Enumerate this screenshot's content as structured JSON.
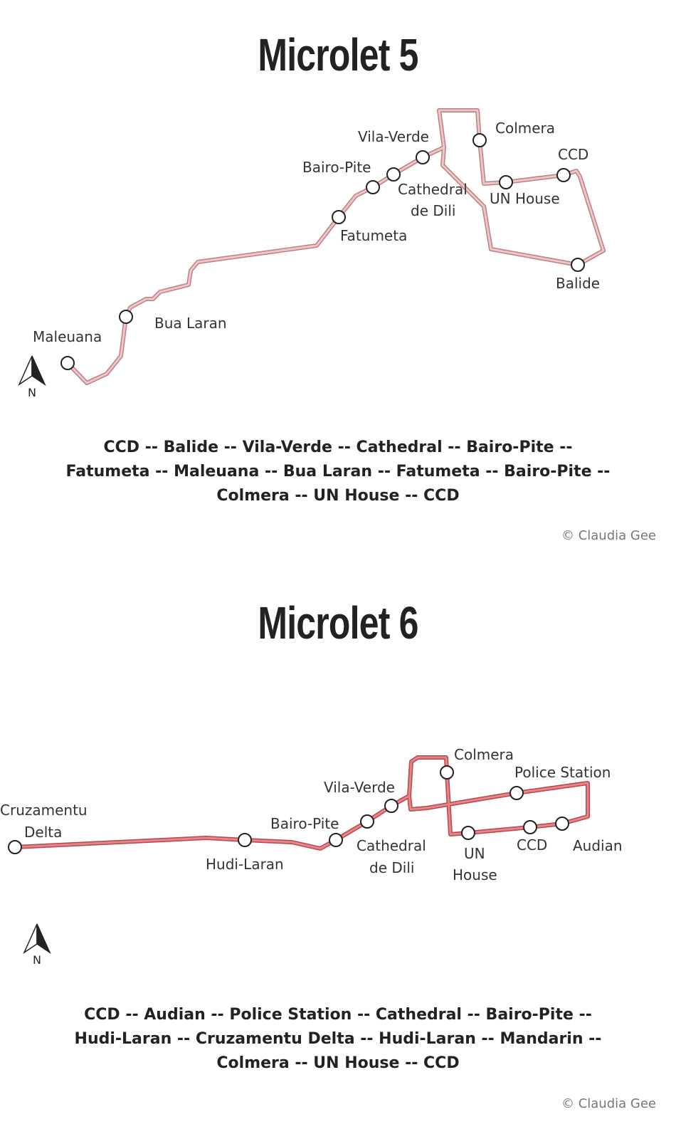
{
  "maps": [
    {
      "title": "Microlet 5",
      "route_line_color": "#e3a5a8",
      "stops": [
        {
          "name": "Maleuana"
        },
        {
          "name": "Bua Laran"
        },
        {
          "name": "Fatumeta"
        },
        {
          "name": "Bairo-Pite"
        },
        {
          "name": "Cathedral"
        },
        {
          "name": "de Dili"
        },
        {
          "name": "Vila-Verde"
        },
        {
          "name": "Colmera"
        },
        {
          "name": "UN House"
        },
        {
          "name": "CCD"
        },
        {
          "name": "Balide"
        }
      ],
      "north_arrow_label": "N",
      "route_text": [
        "CCD -- Balide -- Vila-Verde -- Cathedral -- Bairo-Pite --",
        "Fatumeta -- Maleuana -- Bua Laran -- Fatumeta -- Bairo-Pite --",
        "Colmera -- UN House -- CCD"
      ],
      "credit": "© Claudia Gee"
    },
    {
      "title": "Microlet 6",
      "route_line_color": "#d9666b",
      "stops": [
        {
          "name": "Cruzamentu"
        },
        {
          "name": "Delta"
        },
        {
          "name": "Hudi-Laran"
        },
        {
          "name": "Bairo-Pite"
        },
        {
          "name": "Vila-Verde"
        },
        {
          "name": "Cathedral"
        },
        {
          "name": "de Dili"
        },
        {
          "name": "Colmera"
        },
        {
          "name": "UN"
        },
        {
          "name": "House"
        },
        {
          "name": "CCD"
        },
        {
          "name": "Police Station"
        },
        {
          "name": "Audian"
        }
      ],
      "north_arrow_label": "N",
      "route_text": [
        "CCD -- Audian -- Police Station -- Cathedral -- Bairo-Pite --",
        "Hudi-Laran -- Cruzamentu Delta -- Hudi-Laran -- Mandarin --",
        "Colmera -- UN House -- CCD"
      ],
      "credit": "© Claudia Gee"
    }
  ]
}
